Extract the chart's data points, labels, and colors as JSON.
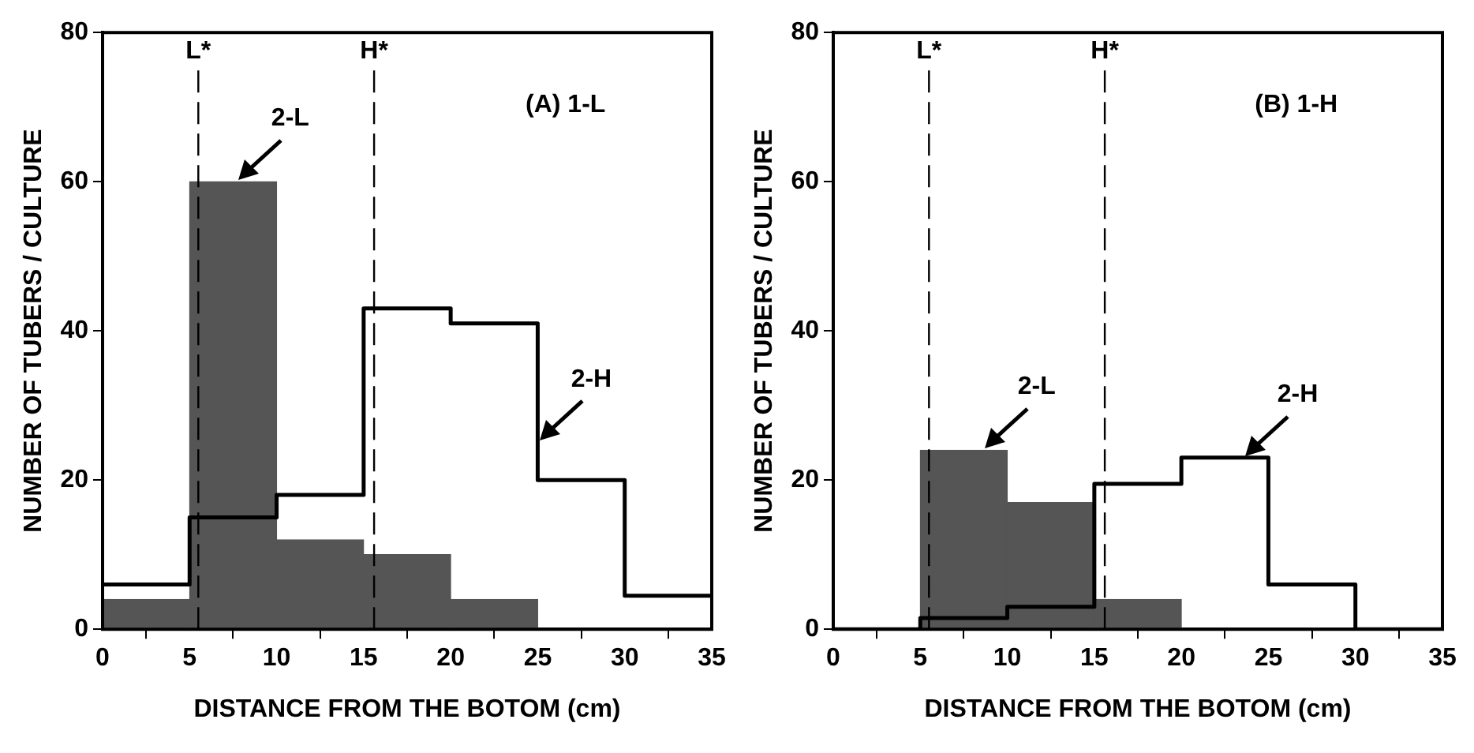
{
  "chart_data": [
    {
      "type": "bar",
      "title": "(A) 1-L",
      "xlabel": "DISTANCE FROM THE BOTOM (cm)",
      "ylabel": "NUMBER OF TUBERS / CULTURE",
      "x": [
        2.5,
        7.5,
        12.5,
        17.5,
        22.5,
        27.5,
        32.5
      ],
      "series": [
        {
          "color": "#555555",
          "values": [
            4,
            60,
            12,
            10,
            4,
            0,
            0
          ]
        },
        {
          "type": "step",
          "color": "#000000",
          "x": [
            0,
            5,
            10,
            15,
            20,
            25,
            30,
            35
          ],
          "values": [
            6,
            15,
            18,
            43,
            41,
            20,
            4.5,
            4.5
          ]
        }
      ],
      "xlim": [
        0,
        35
      ],
      "xticks": [
        0,
        5,
        10,
        15,
        20,
        25,
        30,
        35
      ],
      "ylim": [
        0,
        80
      ],
      "yticks": [
        0,
        20,
        40,
        60,
        80
      ],
      "grid": false,
      "legend": false,
      "ref_lines": [
        {
          "axis": "x",
          "value": 5.5,
          "label": "L*",
          "color": "#000000",
          "line_style": "dashed"
        },
        {
          "axis": "x",
          "value": 15.6,
          "label": "H*",
          "color": "#000000",
          "line_style": "dashed"
        }
      ],
      "annotations": [
        {
          "text": "2-L",
          "x": 7.7,
          "y": 60
        },
        {
          "text": "2-H",
          "x": 25,
          "y": 25
        }
      ]
    },
    {
      "type": "bar",
      "title": "(B) 1-H",
      "xlabel": "DISTANCE FROM THE BOTOM (cm)",
      "ylabel": "NUMBER OF TUBERS / CULTURE",
      "x": [
        2.5,
        7.5,
        12.5,
        17.5,
        22.5,
        27.5,
        32.5
      ],
      "series": [
        {
          "color": "#555555",
          "values": [
            0,
            24,
            17,
            4,
            0,
            0,
            0
          ]
        },
        {
          "type": "step",
          "color": "#000000",
          "x": [
            0,
            5,
            10,
            15,
            20,
            25,
            30,
            35
          ],
          "values": [
            0,
            1.5,
            3,
            19.5,
            23,
            6,
            0,
            0
          ]
        }
      ],
      "xlim": [
        0,
        35
      ],
      "xticks": [
        0,
        5,
        10,
        15,
        20,
        25,
        30,
        35
      ],
      "ylim": [
        0,
        80
      ],
      "yticks": [
        0,
        20,
        40,
        60,
        80
      ],
      "grid": false,
      "legend": false,
      "ref_lines": [
        {
          "axis": "x",
          "value": 5.5,
          "label": "L*",
          "color": "#000000",
          "line_style": "dashed"
        },
        {
          "axis": "x",
          "value": 15.6,
          "label": "H*",
          "color": "#000000",
          "line_style": "dashed"
        }
      ],
      "annotations": [
        {
          "text": "2-L",
          "x": 8.6,
          "y": 24
        },
        {
          "text": "2-H",
          "x": 23.6,
          "y": 23
        }
      ]
    }
  ]
}
